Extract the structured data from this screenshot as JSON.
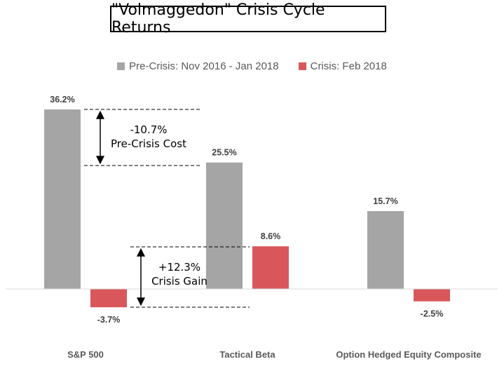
{
  "colors": {
    "pre_crisis": "#A5A5A5",
    "crisis": "#D9575A",
    "label": "#404040",
    "axis_label": "#595959"
  },
  "annotations": {
    "cost_value": "-10.7%",
    "cost_label": "Pre-Crisis Cost",
    "gain_value": "+12.3%",
    "gain_label": "Crisis Gain"
  },
  "chart_data": {
    "type": "bar",
    "title": "\"Volmaggedon\" Crisis Cycle Returns",
    "categories": [
      "S&P 500",
      "Tactical Beta",
      "Option Hedged Equity Composite"
    ],
    "series": [
      {
        "name": "Pre-Crisis: Nov 2016 - Jan 2018",
        "values": [
          36.2,
          25.5,
          15.7
        ],
        "labels": [
          "36.2%",
          "25.5%",
          "15.7%"
        ]
      },
      {
        "name": "Crisis: Feb 2018",
        "values": [
          -3.7,
          8.6,
          -2.5
        ],
        "labels": [
          "-3.7%",
          "8.6%",
          "-2.5%"
        ]
      }
    ],
    "legend_position": "top",
    "grid": false,
    "xlabel": "",
    "ylabel": ""
  }
}
